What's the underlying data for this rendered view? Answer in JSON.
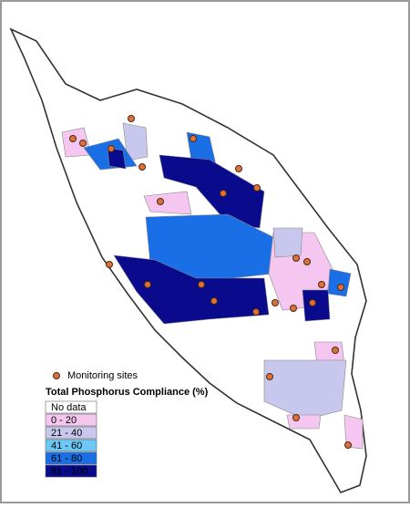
{
  "legend": {
    "sites_label": "Monitoring sites",
    "title": "Total Phosphorus Compliance (%)",
    "items": [
      {
        "label": "No data",
        "color": "#ffffff"
      },
      {
        "label": "0 - 20",
        "color": "#f5c6f0"
      },
      {
        "label": "21 - 40",
        "color": "#c8c8ee"
      },
      {
        "label": "41 - 60",
        "color": "#6ec8f5"
      },
      {
        "label": "61 - 80",
        "color": "#1a6ee6"
      },
      {
        "label": "81 - 100",
        "color": "#0a0a8c"
      }
    ]
  }
}
